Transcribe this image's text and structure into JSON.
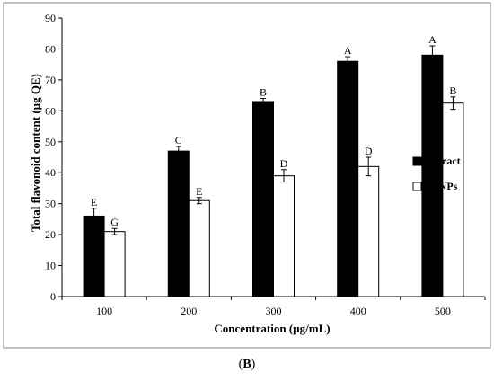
{
  "panel_label": {
    "open": "(",
    "letter": "B",
    "close": ")"
  },
  "chart_data": {
    "type": "bar",
    "title": "",
    "xlabel": "Concentration (µg/mL)",
    "ylabel": "Total flavonoid content (µg QE)",
    "categories": [
      "100",
      "200",
      "300",
      "400",
      "500"
    ],
    "ylim": [
      0,
      90
    ],
    "yticks": [
      0,
      10,
      20,
      30,
      40,
      50,
      60,
      70,
      80,
      90
    ],
    "grid": false,
    "legend_position": "right",
    "series": [
      {
        "name": "Extract",
        "color": "#000000",
        "fill": "#000000",
        "values": [
          26,
          47,
          63,
          76,
          78
        ],
        "errors": [
          2.5,
          1.5,
          1,
          1.5,
          3
        ],
        "letters": [
          "E",
          "C",
          "B",
          "A",
          "A"
        ]
      },
      {
        "name": "AgNPs",
        "color": "#000000",
        "fill": "#ffffff",
        "values": [
          21,
          31,
          39,
          42,
          62.5
        ],
        "errors": [
          1,
          1,
          2,
          3,
          2
        ],
        "letters": [
          "G",
          "E",
          "D",
          "D",
          "B"
        ]
      }
    ]
  }
}
